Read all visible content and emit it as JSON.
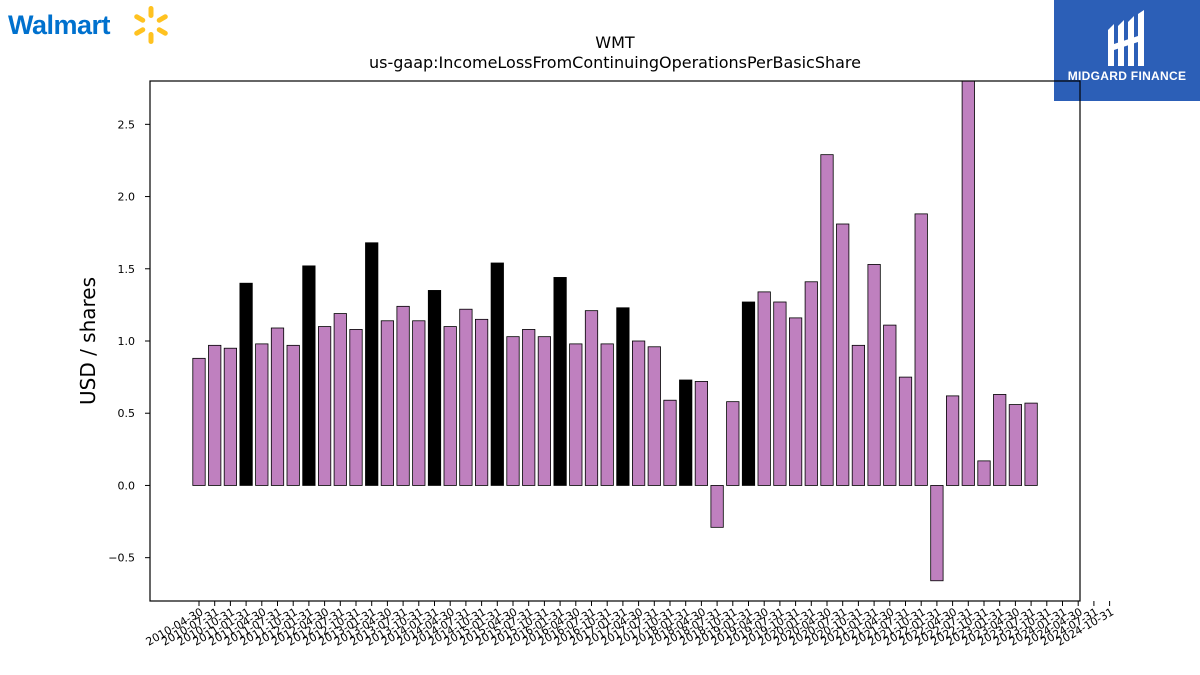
{
  "branding": {
    "left_logo_text": "Walmart",
    "left_logo_color": "#0071ce",
    "left_logo_spark_color": "#ffc220",
    "right_logo_text": "MIDGARD FINANCE",
    "right_logo_bg": "#2c5fb7"
  },
  "chart_data": {
    "type": "bar",
    "title": "WMT",
    "subtitle": "us-gaap:IncomeLossFromContinuingOperationsPerBasicShare",
    "xlabel": "",
    "ylabel": "USD / shares",
    "ylim": [
      -0.8,
      2.8
    ],
    "yticks": [
      -0.5,
      0.0,
      0.5,
      1.0,
      1.5,
      2.0,
      2.5
    ],
    "ytick_labels": [
      "−0.5",
      "0.0",
      "0.5",
      "1.0",
      "1.5",
      "2.0",
      "2.5"
    ],
    "grid": false,
    "colors": {
      "quarterly": "#bf80bf",
      "annual": "#000000",
      "edge": "#000000"
    },
    "categories": [
      "2010-04-30",
      "2010-07-31",
      "2010-10-31",
      "2011-01-31",
      "2011-04-30",
      "2011-07-31",
      "2011-10-31",
      "2012-01-31",
      "2012-04-30",
      "2012-07-31",
      "2012-10-31",
      "2013-01-31",
      "2013-04-30",
      "2013-07-31",
      "2013-10-31",
      "2014-01-31",
      "2014-04-30",
      "2014-07-31",
      "2014-10-31",
      "2015-01-31",
      "2015-04-30",
      "2015-07-31",
      "2015-10-31",
      "2016-01-31",
      "2016-04-30",
      "2016-07-31",
      "2016-10-31",
      "2017-01-31",
      "2017-04-30",
      "2017-07-31",
      "2017-10-31",
      "2018-01-31",
      "2018-04-30",
      "2018-07-31",
      "2018-10-31",
      "2019-01-31",
      "2019-04-30",
      "2019-07-31",
      "2019-10-31",
      "2020-01-31",
      "2020-04-30",
      "2020-07-31",
      "2020-10-31",
      "2021-01-31",
      "2021-04-30",
      "2021-07-31",
      "2021-10-31",
      "2022-01-31",
      "2022-04-30",
      "2022-07-31",
      "2022-10-31",
      "2023-01-31",
      "2023-04-30",
      "2023-07-31",
      "2023-10-31",
      "2024-01-31",
      "2024-04-30",
      "2024-07-31",
      "2024-10-31"
    ],
    "values": [
      0.88,
      0.97,
      0.95,
      1.4,
      0.98,
      1.09,
      0.97,
      1.52,
      1.1,
      1.19,
      1.08,
      1.68,
      1.14,
      1.24,
      1.14,
      1.35,
      1.1,
      1.22,
      1.15,
      1.54,
      1.03,
      1.08,
      1.03,
      1.44,
      0.98,
      1.21,
      0.98,
      1.23,
      1.0,
      0.96,
      0.59,
      0.73,
      0.72,
      -0.29,
      0.58,
      1.27,
      1.34,
      1.27,
      1.16,
      1.41,
      2.29,
      1.81,
      0.97,
      1.53,
      1.11,
      0.75,
      1.88,
      -0.66,
      0.62,
      2.8,
      0.17,
      0.63,
      0.56,
      0.57,
      null,
      null,
      null,
      null,
      null
    ],
    "annual_flags": [
      false,
      false,
      false,
      true,
      false,
      false,
      false,
      true,
      false,
      false,
      false,
      true,
      false,
      false,
      false,
      true,
      false,
      false,
      false,
      true,
      false,
      false,
      false,
      true,
      false,
      false,
      false,
      true,
      false,
      false,
      false,
      true,
      false,
      false,
      false,
      true,
      false,
      false,
      false,
      false,
      false,
      false,
      false,
      false,
      false,
      false,
      false,
      false,
      false,
      false,
      false,
      false,
      false,
      false,
      false,
      false,
      false,
      false,
      false
    ]
  }
}
